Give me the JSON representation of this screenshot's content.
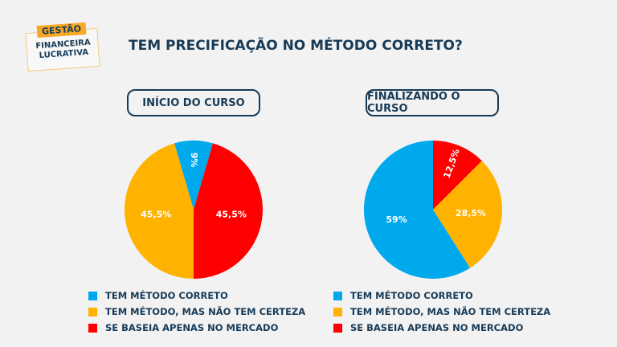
{
  "logo": {
    "top": "GESTÃO",
    "line1": "FINANCEIRA",
    "line2": "LUCRATIVA"
  },
  "title": "TEM PRECIFICAÇÃO NO MÉTODO CORRETO?",
  "legend": [
    {
      "label": "TEM MÉTODO CORRETO",
      "color": "#00a8ec"
    },
    {
      "label": "TEM MÉTODO, MAS NÃO TEM CERTEZA",
      "color": "#ffb300"
    },
    {
      "label": "SE BASEIA APENAS NO MERCADO",
      "color": "#ff0000"
    }
  ],
  "chart_data": [
    {
      "type": "pie",
      "title": "INÍCIO DO CURSO",
      "categories": [
        "TEM MÉTODO CORRETO",
        "TEM MÉTODO, MAS NÃO TEM CERTEZA",
        "SE BASEIA APENAS NO MERCADO"
      ],
      "values": [
        9,
        45.5,
        45.5
      ],
      "labels": [
        "9%",
        "45,5%",
        "45,5%"
      ],
      "colors": [
        "#00a8ec",
        "#ffb300",
        "#ff0000"
      ]
    },
    {
      "type": "pie",
      "title": "FINALIZANDO O CURSO",
      "categories": [
        "TEM MÉTODO CORRETO",
        "TEM MÉTODO, MAS NÃO TEM CERTEZA",
        "SE BASEIA APENAS NO MERCADO"
      ],
      "values": [
        59,
        28.5,
        12.5
      ],
      "labels": [
        "59%",
        "28,5%",
        "12,5%"
      ],
      "colors": [
        "#00a8ec",
        "#ffb300",
        "#ff0000"
      ]
    }
  ]
}
